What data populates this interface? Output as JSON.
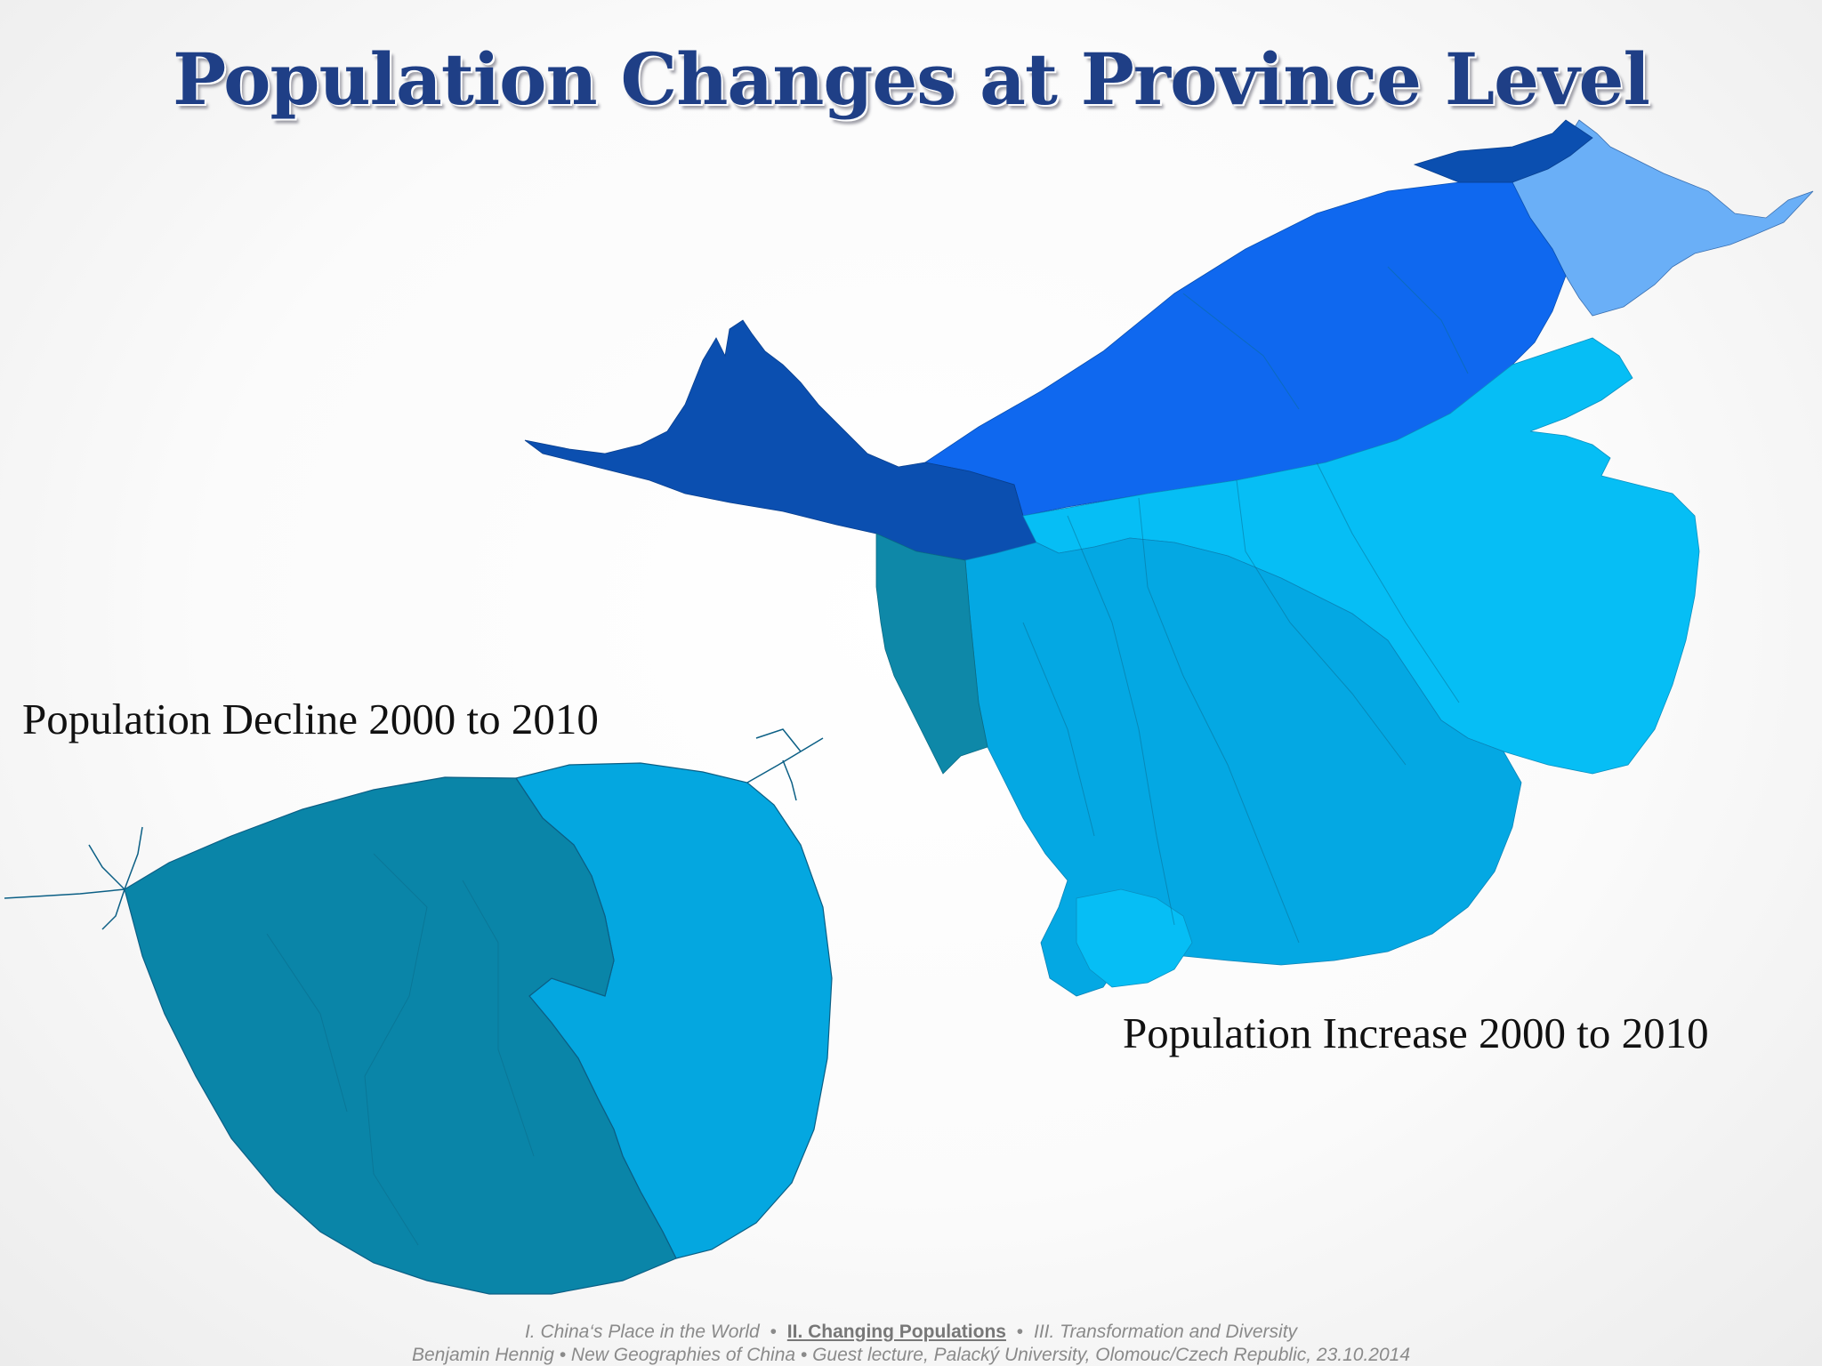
{
  "title": "Population Changes at Province Level",
  "labels": {
    "decline": "Population Decline 2000 to 2010",
    "increase": "Population Increase 2000 to 2010"
  },
  "footer": {
    "nav": [
      "I. China‘s Place in the World",
      "II. Changing Populations",
      "III. Transformation and Diversity"
    ],
    "separator": "•",
    "credit": "Benjamin Hennig • New Geographies of China • Guest lecture, Palacký University, Olomouc/Czech Republic, 23.10.2014"
  },
  "colors": {
    "decline_dark": "#0a85a8",
    "decline_light": "#04a7e0",
    "north_dark": "#0b4fb0",
    "north_mid": "#0f68ef",
    "northeast": "#6aaff7",
    "east": "#06bef5",
    "south": "#04a8e3",
    "southwest": "#0e88a8"
  }
}
